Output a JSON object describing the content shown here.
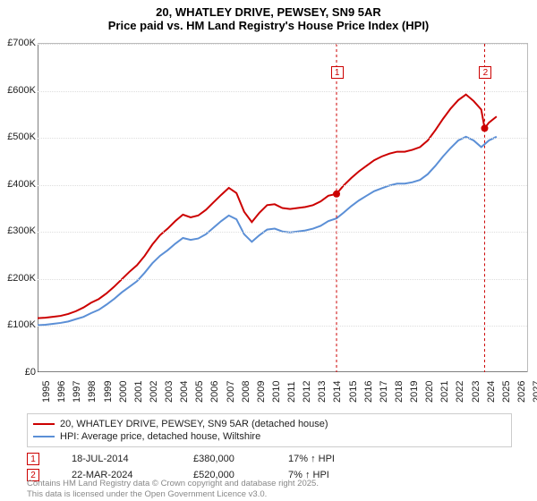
{
  "title": {
    "line1": "20, WHATLEY DRIVE, PEWSEY, SN9 5AR",
    "line2": "Price paid vs. HM Land Registry's House Price Index (HPI)",
    "fontsize": 13,
    "color": "#000000"
  },
  "chart": {
    "type": "line",
    "background_color": "#ffffff",
    "grid_color": "#dddddd",
    "axis_color": "#000000",
    "ylim": [
      0,
      700000
    ],
    "ytick_step": 100000,
    "ytick_labels": [
      "£0",
      "£100K",
      "£200K",
      "£300K",
      "£400K",
      "£500K",
      "£600K",
      "£700K"
    ],
    "ylabel_fontsize": 11,
    "xlim": [
      1995,
      2027
    ],
    "xtick_step": 1,
    "xtick_labels": [
      "1995",
      "1996",
      "1997",
      "1998",
      "1999",
      "2000",
      "2001",
      "2002",
      "2003",
      "2004",
      "2005",
      "2006",
      "2007",
      "2008",
      "2009",
      "2010",
      "2011",
      "2012",
      "2013",
      "2014",
      "2015",
      "2016",
      "2017",
      "2018",
      "2019",
      "2020",
      "2021",
      "2022",
      "2023",
      "2024",
      "2025",
      "2026",
      "2027"
    ],
    "xlabel_fontsize": 11,
    "xlabel_rotation": -90,
    "series": [
      {
        "name": "price_paid",
        "label": "20, WHATLEY DRIVE, PEWSEY, SN9 5AR (detached house)",
        "color": "#cc0000",
        "line_width": 2,
        "data": [
          [
            1995.0,
            115000
          ],
          [
            1995.5,
            116000
          ],
          [
            1996.0,
            118000
          ],
          [
            1996.5,
            120000
          ],
          [
            1997.0,
            124000
          ],
          [
            1997.5,
            130000
          ],
          [
            1998.0,
            138000
          ],
          [
            1998.5,
            148000
          ],
          [
            1999.0,
            156000
          ],
          [
            1999.5,
            168000
          ],
          [
            2000.0,
            182000
          ],
          [
            2000.5,
            198000
          ],
          [
            2001.0,
            214000
          ],
          [
            2001.5,
            228000
          ],
          [
            2002.0,
            248000
          ],
          [
            2002.5,
            272000
          ],
          [
            2003.0,
            292000
          ],
          [
            2003.5,
            306000
          ],
          [
            2004.0,
            322000
          ],
          [
            2004.5,
            336000
          ],
          [
            2005.0,
            330000
          ],
          [
            2005.5,
            334000
          ],
          [
            2006.0,
            346000
          ],
          [
            2006.5,
            362000
          ],
          [
            2007.0,
            378000
          ],
          [
            2007.5,
            393000
          ],
          [
            2008.0,
            382000
          ],
          [
            2008.5,
            342000
          ],
          [
            2009.0,
            320000
          ],
          [
            2009.5,
            340000
          ],
          [
            2010.0,
            356000
          ],
          [
            2010.5,
            358000
          ],
          [
            2011.0,
            350000
          ],
          [
            2011.5,
            348000
          ],
          [
            2012.0,
            350000
          ],
          [
            2012.5,
            352000
          ],
          [
            2013.0,
            356000
          ],
          [
            2013.5,
            364000
          ],
          [
            2014.0,
            376000
          ],
          [
            2014.54,
            380000
          ],
          [
            2015.0,
            398000
          ],
          [
            2015.5,
            414000
          ],
          [
            2016.0,
            428000
          ],
          [
            2016.5,
            440000
          ],
          [
            2017.0,
            452000
          ],
          [
            2017.5,
            460000
          ],
          [
            2018.0,
            466000
          ],
          [
            2018.5,
            470000
          ],
          [
            2019.0,
            470000
          ],
          [
            2019.5,
            474000
          ],
          [
            2020.0,
            480000
          ],
          [
            2020.5,
            494000
          ],
          [
            2021.0,
            516000
          ],
          [
            2021.5,
            540000
          ],
          [
            2022.0,
            562000
          ],
          [
            2022.5,
            580000
          ],
          [
            2023.0,
            592000
          ],
          [
            2023.5,
            578000
          ],
          [
            2024.0,
            560000
          ],
          [
            2024.22,
            520000
          ],
          [
            2024.5,
            532000
          ],
          [
            2025.0,
            545000
          ]
        ]
      },
      {
        "name": "hpi",
        "label": "HPI: Average price, detached house, Wiltshire",
        "color": "#5b8fd6",
        "line_width": 2,
        "data": [
          [
            1995.0,
            100000
          ],
          [
            1995.5,
            101000
          ],
          [
            1996.0,
            103000
          ],
          [
            1996.5,
            105000
          ],
          [
            1997.0,
            108000
          ],
          [
            1997.5,
            113000
          ],
          [
            1998.0,
            118000
          ],
          [
            1998.5,
            126000
          ],
          [
            1999.0,
            133000
          ],
          [
            1999.5,
            144000
          ],
          [
            2000.0,
            156000
          ],
          [
            2000.5,
            170000
          ],
          [
            2001.0,
            182000
          ],
          [
            2001.5,
            194000
          ],
          [
            2002.0,
            212000
          ],
          [
            2002.5,
            232000
          ],
          [
            2003.0,
            248000
          ],
          [
            2003.5,
            260000
          ],
          [
            2004.0,
            274000
          ],
          [
            2004.5,
            286000
          ],
          [
            2005.0,
            282000
          ],
          [
            2005.5,
            285000
          ],
          [
            2006.0,
            294000
          ],
          [
            2006.5,
            308000
          ],
          [
            2007.0,
            322000
          ],
          [
            2007.5,
            334000
          ],
          [
            2008.0,
            326000
          ],
          [
            2008.5,
            294000
          ],
          [
            2009.0,
            278000
          ],
          [
            2009.5,
            292000
          ],
          [
            2010.0,
            304000
          ],
          [
            2010.5,
            306000
          ],
          [
            2011.0,
            300000
          ],
          [
            2011.5,
            298000
          ],
          [
            2012.0,
            300000
          ],
          [
            2012.5,
            302000
          ],
          [
            2013.0,
            306000
          ],
          [
            2013.5,
            312000
          ],
          [
            2014.0,
            322000
          ],
          [
            2014.54,
            328000
          ],
          [
            2015.0,
            340000
          ],
          [
            2015.5,
            354000
          ],
          [
            2016.0,
            366000
          ],
          [
            2016.5,
            376000
          ],
          [
            2017.0,
            386000
          ],
          [
            2017.5,
            392000
          ],
          [
            2018.0,
            398000
          ],
          [
            2018.5,
            402000
          ],
          [
            2019.0,
            402000
          ],
          [
            2019.5,
            405000
          ],
          [
            2020.0,
            410000
          ],
          [
            2020.5,
            422000
          ],
          [
            2021.0,
            440000
          ],
          [
            2021.5,
            460000
          ],
          [
            2022.0,
            478000
          ],
          [
            2022.5,
            494000
          ],
          [
            2023.0,
            502000
          ],
          [
            2023.5,
            494000
          ],
          [
            2024.0,
            480000
          ],
          [
            2024.22,
            486000
          ],
          [
            2024.5,
            494000
          ],
          [
            2025.0,
            502000
          ]
        ]
      }
    ],
    "sale_markers": [
      {
        "n": "1",
        "x_year": 2014.54,
        "y_value": 380000,
        "color": "#cc0000",
        "box_top_y": 640000
      },
      {
        "n": "2",
        "x_year": 2024.22,
        "y_value": 520000,
        "color": "#cc0000",
        "box_top_y": 640000
      }
    ]
  },
  "legend": {
    "border_color": "#cccccc",
    "fontsize": 11,
    "items": [
      {
        "color": "#cc0000",
        "label": "20, WHATLEY DRIVE, PEWSEY, SN9 5AR (detached house)"
      },
      {
        "color": "#5b8fd6",
        "label": "HPI: Average price, detached house, Wiltshire"
      }
    ]
  },
  "sales_table": {
    "fontsize": 11,
    "rows": [
      {
        "n": "1",
        "color": "#cc0000",
        "date": "18-JUL-2014",
        "price": "£380,000",
        "hpi_delta": "17% ↑ HPI"
      },
      {
        "n": "2",
        "color": "#cc0000",
        "date": "22-MAR-2024",
        "price": "£520,000",
        "hpi_delta": "7% ↑ HPI"
      }
    ]
  },
  "footer": {
    "line1": "Contains HM Land Registry data © Crown copyright and database right 2025.",
    "line2": "This data is licensed under the Open Government Licence v3.0.",
    "color": "#888888",
    "fontsize": 9.5
  }
}
